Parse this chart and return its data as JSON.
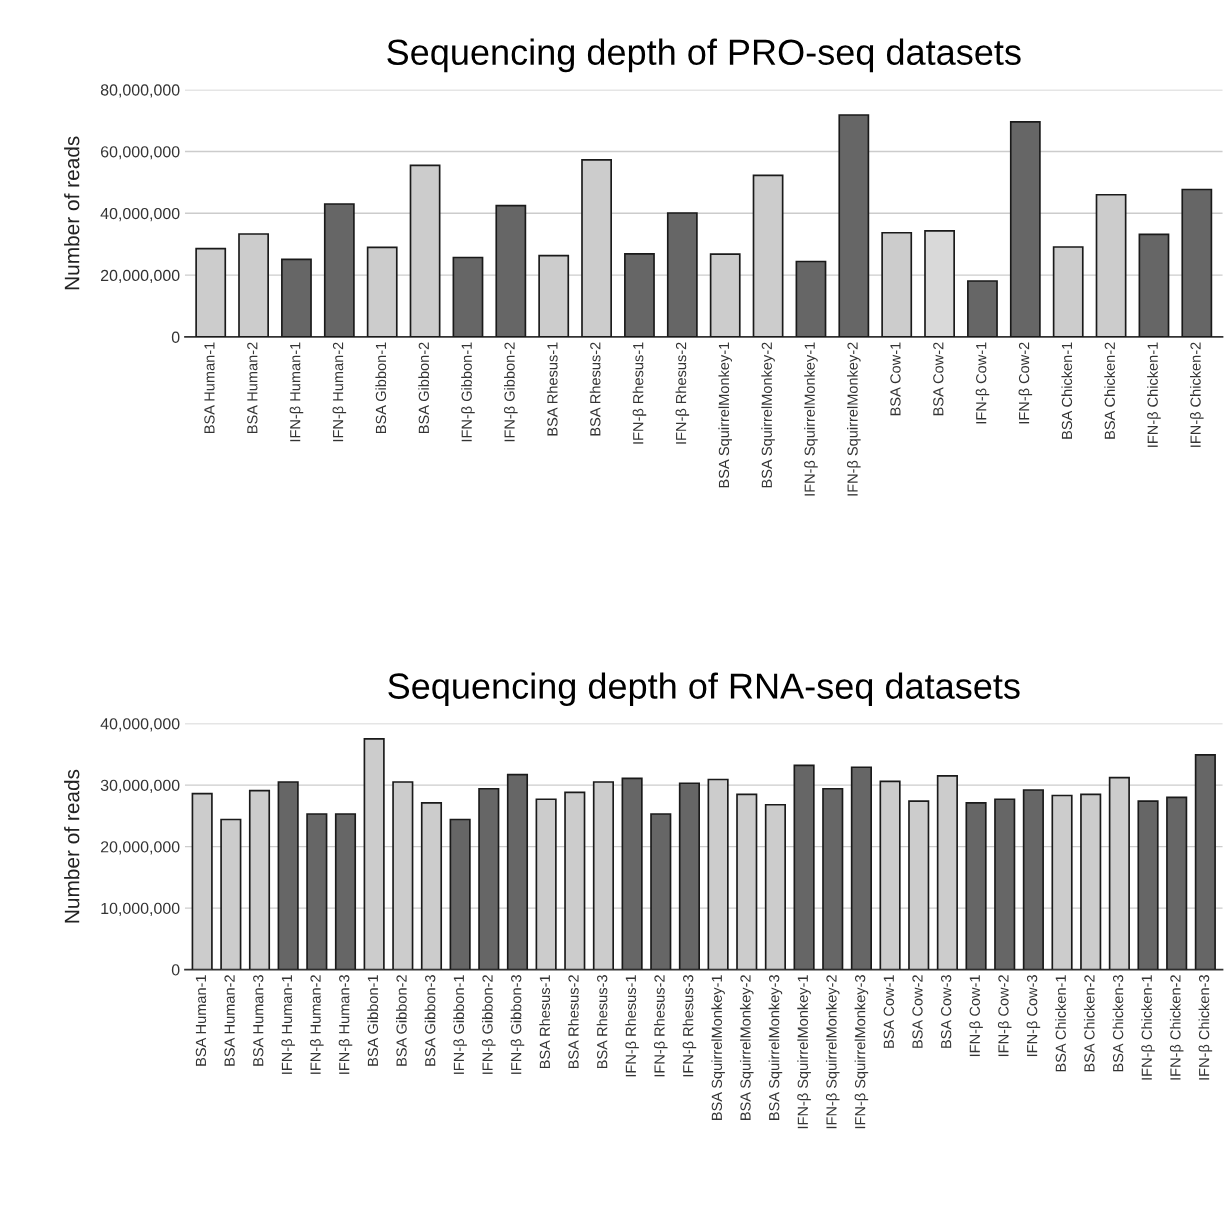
{
  "chart_data": [
    {
      "type": "bar",
      "title": "Sequencing depth of PRO-seq datasets",
      "ylabel": "Number of reads",
      "categories": [
        "BSA Human-1",
        "BSA Human-2",
        "IFN-β Human-1",
        "IFN-β Human-2",
        "BSA Gibbon-1",
        "BSA Gibbon-2",
        "IFN-β Gibbon-1",
        "IFN-β Gibbon-2",
        "BSA Rhesus-1",
        "BSA Rhesus-2",
        "IFN-β Rhesus-1",
        "IFN-β Rhesus-2",
        "BSA SquirrelMonkey-1",
        "BSA SquirrelMonkey-2",
        "IFN-β SquirrelMonkey-1",
        "IFN-β SquirrelMonkey-2",
        "BSA Cow-1",
        "BSA Cow-2",
        "IFN-β Cow-1",
        "IFN-β Cow-2",
        "BSA Chicken-1",
        "BSA Chicken-2",
        "IFN-β Chicken-1",
        "IFN-β Chicken-2"
      ],
      "values": [
        28600000,
        33300000,
        25100000,
        43000000,
        29000000,
        55500000,
        25700000,
        42500000,
        26300000,
        57300000,
        26900000,
        40100000,
        26800000,
        52300000,
        24400000,
        71800000,
        33700000,
        34300000,
        18100000,
        69600000,
        29100000,
        46000000,
        33200000,
        47700000
      ],
      "colors": [
        "#cccccc",
        "#cccccc",
        "#666666",
        "#666666",
        "#cccccc",
        "#cccccc",
        "#666666",
        "#666666",
        "#cccccc",
        "#cccccc",
        "#666666",
        "#666666",
        "#cccccc",
        "#cccccc",
        "#666666",
        "#666666",
        "#cccccc",
        "#d9d9d9",
        "#666666",
        "#666666",
        "#cccccc",
        "#cccccc",
        "#666666",
        "#666666"
      ],
      "ylim": [
        0,
        80000000
      ],
      "yticks": [
        {
          "value": 0,
          "label": "0"
        },
        {
          "value": 20000000,
          "label": "20,000,000"
        },
        {
          "value": 40000000,
          "label": "40,000,000"
        },
        {
          "value": 60000000,
          "label": "60,000,000"
        },
        {
          "value": 80000000,
          "label": "80,000,000"
        }
      ],
      "grid": "y",
      "legend": false
    },
    {
      "type": "bar",
      "title": "Sequencing depth of RNA-seq datasets",
      "ylabel": "Number of reads",
      "categories": [
        "BSA Human-1",
        "BSA Human-2",
        "BSA Human-3",
        "IFN-β Human-1",
        "IFN-β Human-2",
        "IFN-β Human-3",
        "BSA Gibbon-1",
        "BSA Gibbon-2",
        "BSA Gibbon-3",
        "IFN-β Gibbon-1",
        "IFN-β Gibbon-2",
        "IFN-β Gibbon-3",
        "BSA Rhesus-1",
        "BSA Rhesus-2",
        "BSA Rhesus-3",
        "IFN-β Rhesus-1",
        "IFN-β Rhesus-2",
        "IFN-β Rhesus-3",
        "BSA SquirrelMonkey-1",
        "BSA SquirrelMonkey-2",
        "BSA SquirrelMonkey-3",
        "IFN-β SquirrelMonkey-1",
        "IFN-β SquirrelMonkey-2",
        "IFN-β SquirrelMonkey-3",
        "BSA Cow-1",
        "BSA Cow-2",
        "BSA Cow-3",
        "IFN-β Cow-1",
        "IFN-β Cow-2",
        "IFN-β Cow-3",
        "BSA Chicken-1",
        "BSA Chicken-2",
        "BSA Chicken-3",
        "IFN-β Chicken-1",
        "IFN-β Chicken-2",
        "IFN-β Chicken-3"
      ],
      "values": [
        28600000,
        24400000,
        29100000,
        30500000,
        25300000,
        25300000,
        37500000,
        30500000,
        27100000,
        24400000,
        29400000,
        31700000,
        27700000,
        28800000,
        30500000,
        31100000,
        25300000,
        30300000,
        30900000,
        28500000,
        26800000,
        33200000,
        29400000,
        32900000,
        30600000,
        27400000,
        31500000,
        27100000,
        27700000,
        29200000,
        28300000,
        28500000,
        31200000,
        27400000,
        28000000,
        34900000
      ],
      "colors": [
        "#cccccc",
        "#cccccc",
        "#cccccc",
        "#666666",
        "#666666",
        "#666666",
        "#cccccc",
        "#cccccc",
        "#cccccc",
        "#666666",
        "#666666",
        "#666666",
        "#cccccc",
        "#cccccc",
        "#cccccc",
        "#666666",
        "#666666",
        "#666666",
        "#cccccc",
        "#cccccc",
        "#cccccc",
        "#666666",
        "#666666",
        "#666666",
        "#cccccc",
        "#cccccc",
        "#cccccc",
        "#666666",
        "#666666",
        "#666666",
        "#cccccc",
        "#cccccc",
        "#cccccc",
        "#666666",
        "#666666",
        "#666666"
      ],
      "ylim": [
        0,
        40000000
      ],
      "yticks": [
        {
          "value": 0,
          "label": "0"
        },
        {
          "value": 10000000,
          "label": "10,000,000"
        },
        {
          "value": 20000000,
          "label": "20,000,000"
        },
        {
          "value": 30000000,
          "label": "30,000,000"
        },
        {
          "value": 40000000,
          "label": "40,000,000"
        }
      ],
      "grid": "y",
      "legend": false
    }
  ]
}
